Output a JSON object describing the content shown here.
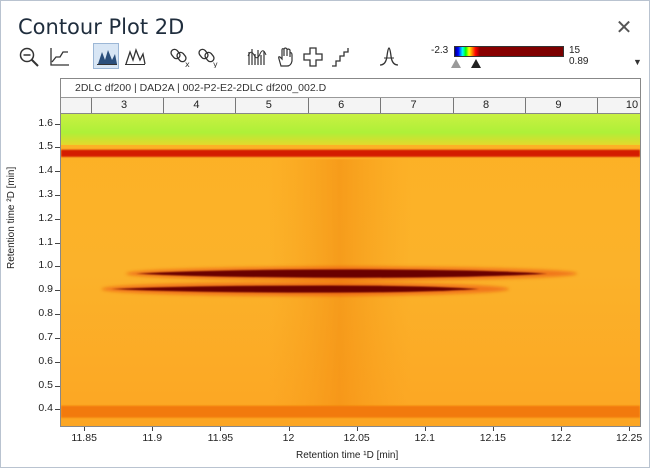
{
  "window": {
    "title": "Contour Plot 2D",
    "close_glyph": "✕"
  },
  "toolbar": {
    "buttons": [
      {
        "name": "zoom-out-icon"
      },
      {
        "name": "line-chart-icon"
      },
      {
        "name": "filled-peaks-icon",
        "active": true
      },
      {
        "name": "peaks-outline-icon"
      },
      {
        "name": "unlink-x-icon"
      },
      {
        "name": "unlink-y-icon"
      },
      {
        "name": "bars-spectrum-icon"
      },
      {
        "name": "hand-pan-icon"
      },
      {
        "name": "crosshair-cross-icon"
      },
      {
        "name": "step-stairs-icon"
      },
      {
        "name": "peak-shape-icon"
      }
    ]
  },
  "color_scale": {
    "min": "-2.3",
    "max": "15",
    "threshold": "0.89",
    "menu_glyph": "▼"
  },
  "plot": {
    "header": "2DLC df200 | DAD2A | 002-P2-E2-2DLC df200_002.D",
    "top_axis_ticks": [
      "3",
      "4",
      "5",
      "6",
      "7",
      "8",
      "9",
      "10"
    ]
  },
  "chart_data": {
    "type": "heatmap",
    "xlabel": "Retention time ¹D [min]",
    "ylabel": "Retention time ²D [min]",
    "x_ticks": [
      "11.85",
      "11.9",
      "11.95",
      "12",
      "12.05",
      "12.1",
      "12.15",
      "12.2",
      "12.25"
    ],
    "y_ticks": [
      "1.6",
      "1.5",
      "1.4",
      "1.3",
      "1.2",
      "1.1",
      "1.0",
      "0.9",
      "0.8",
      "0.7",
      "0.6",
      "0.5",
      "0.4"
    ],
    "xlim": [
      11.833,
      12.258
    ],
    "ylim": [
      0.33,
      1.64
    ],
    "colormap": [
      "#000080",
      "#0000ff",
      "#00ffff",
      "#00ff00",
      "#ffff00",
      "#ff8000",
      "#ff0000",
      "#8b0000"
    ],
    "color_range": [
      -2.3,
      15
    ],
    "features": [
      {
        "kind": "band",
        "y_from": 1.51,
        "y_to": 1.64,
        "color": "#b8f23a"
      },
      {
        "kind": "band",
        "y_from": 1.46,
        "y_to": 1.49,
        "color": "#d41a00"
      },
      {
        "kind": "band",
        "y_from": 0.365,
        "y_to": 0.415,
        "color": "#f27a0c"
      },
      {
        "kind": "peak",
        "x_center": 12.05,
        "x_from": 11.888,
        "x_to": 12.19,
        "y": 0.97,
        "height": 0.035,
        "color": "#6a0000"
      },
      {
        "kind": "peak",
        "x_center": 12.03,
        "x_from": 11.87,
        "x_to": 12.14,
        "y": 0.905,
        "height": 0.03,
        "color": "#6a0000"
      }
    ]
  }
}
